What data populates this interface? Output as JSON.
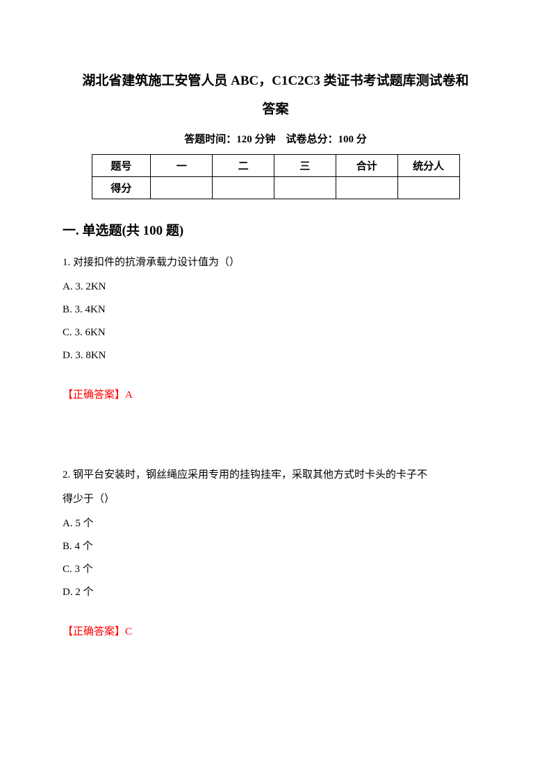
{
  "title_line1": "湖北省建筑施工安管人员 ABC，C1C2C3 类证书考试题库测试卷和",
  "title_line2": "答案",
  "exam_info": "答题时间：120 分钟　试卷总分：100 分",
  "table": {
    "row1": [
      "题号",
      "一",
      "二",
      "三",
      "合计",
      "统分人"
    ],
    "row2": [
      "得分",
      "",
      "",
      "",
      "",
      ""
    ]
  },
  "section_heading": "一. 单选题(共 100 题)",
  "questions": [
    {
      "text": "1. 对接扣件的抗滑承载力设计值为（）",
      "options": [
        "A. 3. 2KN",
        "B. 3. 4KN",
        "C. 3. 6KN",
        "D. 3. 8KN"
      ],
      "answer": "【正确答案】A"
    },
    {
      "text_line1": "2. 钢平台安装时，钢丝绳应采用专用的挂钩挂牢，采取其他方式时卡头的卡子不",
      "text_line2": "得少于（）",
      "options": [
        "A. 5 个",
        "B. 4 个",
        "C. 3 个",
        "D. 2 个"
      ],
      "answer": "【正确答案】C"
    }
  ],
  "colors": {
    "text": "#000000",
    "answer": "#ff0000",
    "background": "#ffffff",
    "border": "#000000"
  }
}
